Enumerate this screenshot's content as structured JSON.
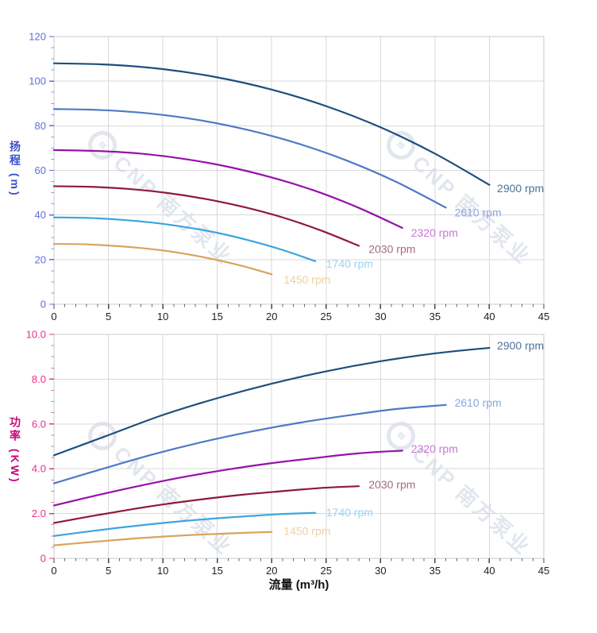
{
  "watermark": {
    "text": "CNP 南方泵业",
    "logo_icon": "cnp-circle-logo",
    "color": "#e2e6ee"
  },
  "chart_data": [
    {
      "type": "line",
      "name": "head-vs-flow",
      "title": "",
      "xlabel": "",
      "ylabel": "扬程 (m)",
      "xlim": [
        0,
        45
      ],
      "ylim": [
        0,
        120
      ],
      "x_ticks": [
        "0",
        "5",
        "10",
        "15",
        "20",
        "25",
        "30",
        "35",
        "40",
        "45"
      ],
      "y_ticks": [
        "0",
        "20",
        "40",
        "60",
        "80",
        "100",
        "120"
      ],
      "x_minor_step": 1,
      "y_minor_step": 5,
      "grid": true,
      "legend_position": "end-of-line-labels",
      "axis_tick_color": "#5f6ee2",
      "axis_title_color": "#3a50cf",
      "x_tick_label_color": "#222222",
      "grid_color": "#d9d9d9",
      "border_color": "#c7cbd1",
      "series": [
        {
          "name": "2900 rpm",
          "color": "#1d4f7d",
          "label_color": "#4f7198",
          "label_at": [
            40.7,
            52
          ],
          "points": [
            [
              0,
              108
            ],
            [
              5,
              107.4
            ],
            [
              10,
              105.4
            ],
            [
              15,
              101.7
            ],
            [
              20,
              96.2
            ],
            [
              25,
              88.8
            ],
            [
              30,
              79.3
            ],
            [
              35,
              67.5
            ],
            [
              40,
              53.5
            ]
          ]
        },
        {
          "name": "2610 rpm",
          "color": "#4f79c8",
          "label_color": "#8ea6dd",
          "label_at": [
            36.8,
            41.2
          ],
          "points": [
            [
              0,
              87.5
            ],
            [
              4.5,
              87
            ],
            [
              9,
              85.4
            ],
            [
              13.5,
              82.4
            ],
            [
              18,
              77.9
            ],
            [
              22.5,
              71.9
            ],
            [
              27,
              64.2
            ],
            [
              31.5,
              54.7
            ],
            [
              36,
              43.3
            ]
          ]
        },
        {
          "name": "2320 rpm",
          "color": "#9512a9",
          "label_color": "#c678d3",
          "label_at": [
            32.8,
            32
          ],
          "points": [
            [
              0,
              69.1
            ],
            [
              4,
              68.7
            ],
            [
              8,
              67.5
            ],
            [
              12,
              65.1
            ],
            [
              16,
              61.6
            ],
            [
              20,
              56.8
            ],
            [
              24,
              50.8
            ],
            [
              28,
              43.2
            ],
            [
              32,
              34.2
            ]
          ]
        },
        {
          "name": "2030 rpm",
          "color": "#8e1a3a",
          "label_color": "#a86b7c",
          "label_at": [
            28.9,
            24.8
          ],
          "points": [
            [
              0,
              52.9
            ],
            [
              3.5,
              52.6
            ],
            [
              7,
              51.6
            ],
            [
              10.5,
              49.8
            ],
            [
              14,
              47.1
            ],
            [
              17.5,
              43.5
            ],
            [
              21,
              38.9
            ],
            [
              24.5,
              33.1
            ],
            [
              28,
              26.2
            ]
          ]
        },
        {
          "name": "1740 rpm",
          "color": "#3ba4e0",
          "label_color": "#9ed2f2",
          "label_at": [
            25,
            18.2
          ],
          "points": [
            [
              0,
              38.9
            ],
            [
              3,
              38.7
            ],
            [
              6,
              37.9
            ],
            [
              9,
              36.6
            ],
            [
              12,
              34.6
            ],
            [
              15,
              32
            ],
            [
              18,
              28.5
            ],
            [
              21,
              24.3
            ],
            [
              24,
              19.3
            ]
          ]
        },
        {
          "name": "1450 rpm",
          "color": "#d8a35e",
          "label_color": "#ecd0a4",
          "label_at": [
            21.1,
            11
          ],
          "points": [
            [
              0,
              27
            ],
            [
              2.5,
              26.9
            ],
            [
              5,
              26.3
            ],
            [
              7.5,
              25.4
            ],
            [
              10,
              24.1
            ],
            [
              12.5,
              22.2
            ],
            [
              15,
              19.8
            ],
            [
              17.5,
              16.9
            ],
            [
              20,
              13.4
            ]
          ]
        }
      ]
    },
    {
      "type": "line",
      "name": "power-vs-flow",
      "title": "",
      "xlabel": "流量 (m³/h)",
      "ylabel": "功率 (KW)",
      "xlim": [
        0,
        45
      ],
      "ylim": [
        0,
        10
      ],
      "x_ticks": [
        "0",
        "5",
        "10",
        "15",
        "20",
        "25",
        "30",
        "35",
        "40",
        "45"
      ],
      "y_ticks": [
        "0",
        "2.0",
        "4.0",
        "6.0",
        "8.0",
        "10.0"
      ],
      "x_minor_step": 1,
      "y_minor_step": 0.5,
      "grid": true,
      "legend_position": "end-of-line-labels",
      "axis_tick_color": "#e9308a",
      "axis_title_color": "#c30b7b",
      "x_tick_label_color": "#222222",
      "grid_color": "#d9d9d9",
      "border_color": "#c7cbd1",
      "series": [
        {
          "name": "2900 rpm",
          "color": "#1d4f7d",
          "label_color": "#4f7198",
          "label_at": [
            40.7,
            9.5
          ],
          "points": [
            [
              0,
              4.6
            ],
            [
              5,
              5.5
            ],
            [
              10,
              6.4
            ],
            [
              15,
              7.15
            ],
            [
              20,
              7.8
            ],
            [
              25,
              8.35
            ],
            [
              30,
              8.8
            ],
            [
              35,
              9.15
            ],
            [
              40,
              9.4
            ]
          ]
        },
        {
          "name": "2610 rpm",
          "color": "#4f79c8",
          "label_color": "#8ea6dd",
          "label_at": [
            36.8,
            6.95
          ],
          "points": [
            [
              0,
              3.35
            ],
            [
              4.5,
              4
            ],
            [
              9,
              4.63
            ],
            [
              13.5,
              5.18
            ],
            [
              18,
              5.65
            ],
            [
              22.5,
              6.05
            ],
            [
              27,
              6.38
            ],
            [
              31.5,
              6.67
            ],
            [
              36,
              6.85
            ]
          ]
        },
        {
          "name": "2320 rpm",
          "color": "#9512a9",
          "label_color": "#c678d3",
          "label_at": [
            32.8,
            4.9
          ],
          "points": [
            [
              0,
              2.36
            ],
            [
              4,
              2.82
            ],
            [
              8,
              3.25
            ],
            [
              12,
              3.64
            ],
            [
              16,
              3.97
            ],
            [
              20,
              4.25
            ],
            [
              24,
              4.48
            ],
            [
              28,
              4.69
            ],
            [
              32,
              4.81
            ]
          ]
        },
        {
          "name": "2030 rpm",
          "color": "#8e1a3a",
          "label_color": "#a86b7c",
          "label_at": [
            28.9,
            3.3
          ],
          "points": [
            [
              0,
              1.58
            ],
            [
              3.5,
              1.89
            ],
            [
              7,
              2.18
            ],
            [
              10.5,
              2.44
            ],
            [
              14,
              2.66
            ],
            [
              17.5,
              2.85
            ],
            [
              21,
              3
            ],
            [
              24.5,
              3.14
            ],
            [
              28,
              3.22
            ]
          ]
        },
        {
          "name": "1740 rpm",
          "color": "#3ba4e0",
          "label_color": "#9ed2f2",
          "label_at": [
            25,
            2.06
          ],
          "points": [
            [
              0,
              1
            ],
            [
              3,
              1.19
            ],
            [
              6,
              1.37
            ],
            [
              9,
              1.53
            ],
            [
              12,
              1.67
            ],
            [
              15,
              1.79
            ],
            [
              18,
              1.89
            ],
            [
              21,
              1.98
            ],
            [
              24,
              2.03
            ]
          ]
        },
        {
          "name": "1450 rpm",
          "color": "#d8a35e",
          "label_color": "#ecd0a4",
          "label_at": [
            21.1,
            1.22
          ],
          "points": [
            [
              0,
              0.58
            ],
            [
              2.5,
              0.69
            ],
            [
              5,
              0.79
            ],
            [
              7.5,
              0.89
            ],
            [
              10,
              0.97
            ],
            [
              12.5,
              1.04
            ],
            [
              15,
              1.09
            ],
            [
              17.5,
              1.14
            ],
            [
              20,
              1.18
            ]
          ]
        }
      ]
    }
  ]
}
